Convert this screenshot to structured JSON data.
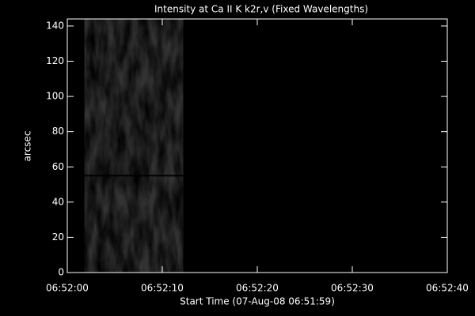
{
  "chart_data": {
    "type": "image",
    "title": "Intensity at Ca II K k2r,v (Fixed Wavelengths)",
    "x_label": "Start Time (07-Aug-08 06:51:59)",
    "y_label": "arcsec",
    "xlim": [
      0,
      40
    ],
    "xticks": [
      {
        "value": 0,
        "label": "06:52:00"
      },
      {
        "value": 10,
        "label": "06:52:10"
      },
      {
        "value": 20,
        "label": "06:52:20"
      },
      {
        "value": 30,
        "label": "06:52:30"
      },
      {
        "value": 40,
        "label": "06:52:40"
      }
    ],
    "ylim": [
      0,
      144
    ],
    "yticks": [
      0,
      20,
      40,
      60,
      80,
      100,
      120,
      140
    ],
    "image_extent": {
      "x": [
        1.8,
        12.2
      ],
      "y": [
        0,
        144
      ]
    },
    "cursor_y": 55,
    "colormap": "gray"
  }
}
